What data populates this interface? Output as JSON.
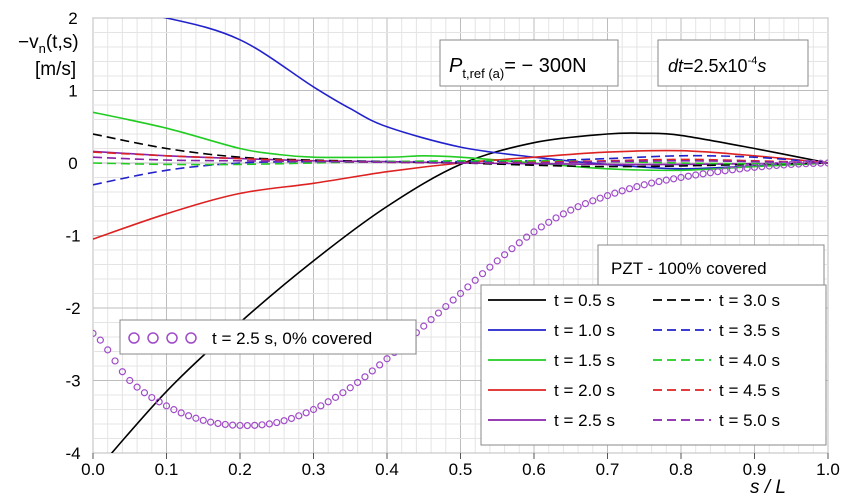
{
  "chart_data": {
    "type": "line",
    "xlabel": "s / L",
    "ylabel_line1": "−v",
    "ylabel_sub": "n",
    "ylabel_rest": "(t,s)",
    "ylabel_unit": "[m/s]",
    "xlim": [
      0.0,
      1.0
    ],
    "ylim": [
      -4,
      2
    ],
    "x_ticks": [
      "0.0",
      "0.1",
      "0.2",
      "0.3",
      "0.4",
      "0.5",
      "0.6",
      "0.7",
      "0.8",
      "0.9",
      "1.0"
    ],
    "y_ticks": [
      "2",
      "1",
      "0",
      "-1",
      "-2",
      "-3",
      "-4"
    ],
    "grid": true,
    "annotations": {
      "force_main": "P",
      "force_sub": "t,ref (a)",
      "force_value": "= − 300N",
      "dt_label": "dt",
      "dt_value": "=2.5x10",
      "dt_exp": "-4",
      "dt_unit": "s"
    },
    "legend": {
      "title": "PZT - 100% covered",
      "placement": "bottom-right",
      "marker_entry": "t = 2.5 s, 0% covered"
    },
    "series": [
      {
        "name": "t = 0.5 s",
        "color": "#000000",
        "dash": "solid",
        "x": [
          0.0,
          0.1,
          0.2,
          0.3,
          0.4,
          0.5,
          0.6,
          0.7,
          0.75,
          0.8,
          0.9,
          1.0
        ],
        "y": [
          -4.3,
          -3.15,
          -2.2,
          -1.35,
          -0.6,
          -0.02,
          0.28,
          0.4,
          0.41,
          0.38,
          0.2,
          0.0
        ]
      },
      {
        "name": "t = 1.0 s",
        "color": "#2222cc",
        "dash": "solid",
        "x": [
          0.0,
          0.1,
          0.2,
          0.3,
          0.35,
          0.4,
          0.5,
          0.6,
          0.7,
          0.8,
          0.9,
          1.0
        ],
        "y": [
          2.15,
          2.0,
          1.7,
          1.05,
          0.75,
          0.5,
          0.22,
          0.08,
          -0.02,
          -0.08,
          -0.04,
          0.0
        ]
      },
      {
        "name": "t = 1.5 s",
        "color": "#22cc22",
        "dash": "solid",
        "x": [
          0.0,
          0.1,
          0.2,
          0.25,
          0.3,
          0.4,
          0.45,
          0.5,
          0.6,
          0.7,
          0.8,
          0.9,
          1.0
        ],
        "y": [
          0.7,
          0.48,
          0.2,
          0.12,
          0.08,
          0.08,
          0.1,
          0.08,
          0.0,
          -0.08,
          -0.1,
          -0.05,
          0.0
        ]
      },
      {
        "name": "t = 2.0 s",
        "color": "#dd2222",
        "dash": "solid",
        "x": [
          0.0,
          0.1,
          0.2,
          0.3,
          0.4,
          0.5,
          0.6,
          0.7,
          0.8,
          0.9,
          1.0
        ],
        "y": [
          -1.05,
          -0.7,
          -0.42,
          -0.28,
          -0.12,
          0.0,
          0.08,
          0.15,
          0.17,
          0.1,
          0.0
        ]
      },
      {
        "name": "t = 2.5 s",
        "color": "#8822aa",
        "dash": "solid",
        "x": [
          0.0,
          0.1,
          0.2,
          0.3,
          0.4,
          0.5,
          0.6,
          0.7,
          0.8,
          0.9,
          1.0
        ],
        "y": [
          0.16,
          0.1,
          0.06,
          0.03,
          0.02,
          0.0,
          -0.01,
          -0.02,
          -0.02,
          -0.01,
          0.0
        ]
      },
      {
        "name": "t = 3.0 s",
        "color": "#000000",
        "dash": "dashed",
        "x": [
          0.0,
          0.1,
          0.2,
          0.3,
          0.4,
          0.5,
          0.6,
          0.7,
          0.8,
          0.9,
          1.0
        ],
        "y": [
          0.4,
          0.2,
          0.08,
          0.04,
          0.02,
          0.0,
          -0.03,
          -0.05,
          -0.04,
          -0.02,
          0.0
        ]
      },
      {
        "name": "t = 3.5 s",
        "color": "#2222cc",
        "dash": "dashed",
        "x": [
          0.0,
          0.1,
          0.2,
          0.3,
          0.4,
          0.5,
          0.6,
          0.7,
          0.8,
          0.9,
          1.0
        ],
        "y": [
          -0.3,
          -0.1,
          0.0,
          0.02,
          0.02,
          0.02,
          0.03,
          0.06,
          0.1,
          0.08,
          0.0
        ]
      },
      {
        "name": "t = 4.0 s",
        "color": "#22cc22",
        "dash": "dashed",
        "x": [
          0.0,
          0.1,
          0.2,
          0.3,
          0.4,
          0.5,
          0.6,
          0.7,
          0.8,
          0.9,
          1.0
        ],
        "y": [
          0.0,
          -0.02,
          -0.02,
          0.0,
          0.02,
          0.03,
          0.03,
          0.02,
          0.0,
          -0.01,
          0.0
        ]
      },
      {
        "name": "t = 4.5 s",
        "color": "#dd2222",
        "dash": "dashed",
        "x": [
          0.0,
          0.1,
          0.2,
          0.3,
          0.4,
          0.5,
          0.6,
          0.7,
          0.8,
          0.9,
          1.0
        ],
        "y": [
          0.15,
          0.1,
          0.06,
          0.03,
          0.01,
          0.0,
          0.01,
          0.03,
          0.05,
          0.03,
          0.0
        ]
      },
      {
        "name": "t = 5.0 s",
        "color": "#8822aa",
        "dash": "dashed",
        "x": [
          0.0,
          0.1,
          0.2,
          0.3,
          0.4,
          0.5,
          0.6,
          0.7,
          0.8,
          0.9,
          1.0
        ],
        "y": [
          0.08,
          0.04,
          0.03,
          0.02,
          0.01,
          0.0,
          0.0,
          0.02,
          0.03,
          0.02,
          0.0
        ]
      }
    ],
    "marker_series": {
      "name": "t = 2.5 s, 0% covered",
      "color": "#a04cc8",
      "marker": "circle",
      "x": [
        0.0,
        0.05,
        0.1,
        0.15,
        0.2,
        0.25,
        0.3,
        0.35,
        0.4,
        0.45,
        0.5,
        0.55,
        0.6,
        0.65,
        0.7,
        0.75,
        0.8,
        0.85,
        0.9,
        0.95,
        1.0
      ],
      "y": [
        -2.35,
        -3.0,
        -3.35,
        -3.55,
        -3.62,
        -3.58,
        -3.4,
        -3.1,
        -2.7,
        -2.25,
        -1.8,
        -1.35,
        -0.95,
        -0.65,
        -0.45,
        -0.3,
        -0.2,
        -0.12,
        -0.06,
        -0.02,
        0.0
      ]
    }
  }
}
